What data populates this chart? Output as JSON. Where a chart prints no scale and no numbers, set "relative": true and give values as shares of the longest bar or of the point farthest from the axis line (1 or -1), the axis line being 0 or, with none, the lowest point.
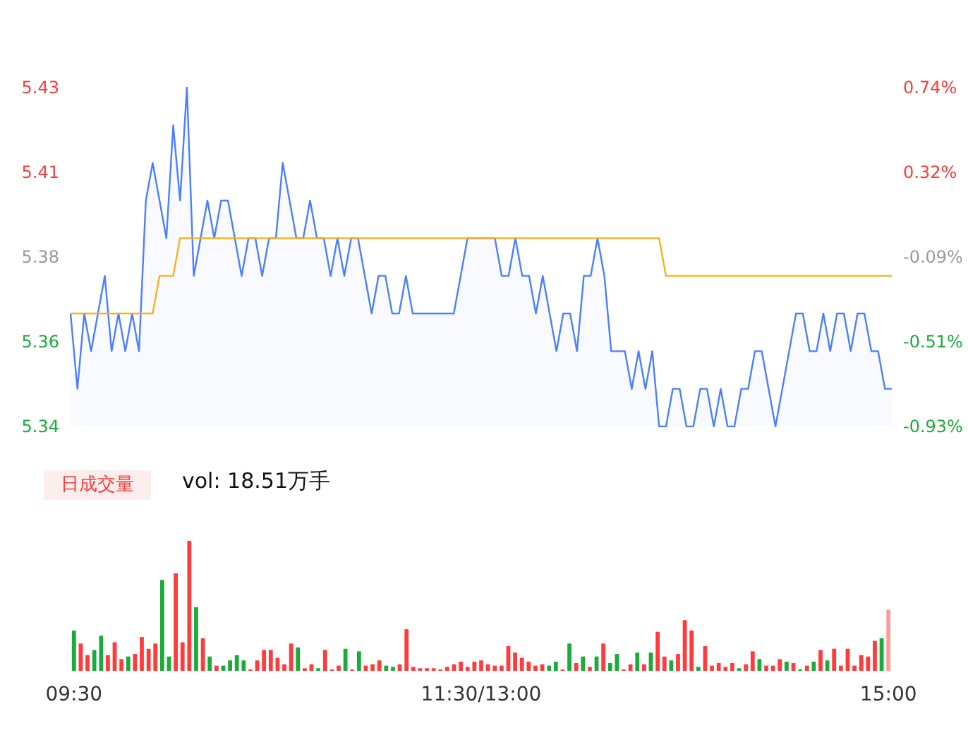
{
  "chart_data": [
    {
      "type": "line",
      "categories": [
        null,
        null,
        null,
        null,
        null,
        null,
        null,
        null,
        null,
        null,
        null,
        null,
        null,
        null,
        null,
        null,
        null,
        null,
        null,
        null,
        null,
        null,
        null,
        null,
        null,
        null,
        null,
        null,
        null,
        null,
        null,
        null,
        null,
        null,
        null,
        null,
        null,
        null,
        null,
        null,
        null,
        null,
        null,
        null,
        null,
        null,
        null,
        null,
        null,
        null,
        null,
        null,
        null,
        null,
        null,
        null,
        null,
        null,
        null,
        null,
        null,
        null,
        null,
        null,
        null,
        null,
        null,
        null,
        null,
        null,
        null,
        null,
        null,
        null,
        null,
        null,
        null,
        null,
        null,
        null,
        null,
        null,
        null,
        null,
        null,
        null,
        null,
        null,
        null,
        null,
        null,
        null,
        null,
        null,
        null,
        null,
        null,
        null,
        null,
        null,
        null,
        null,
        null,
        null,
        null,
        null,
        null,
        null,
        null,
        null,
        null,
        null,
        null,
        null,
        null,
        null,
        null,
        null,
        null,
        null,
        null
      ],
      "series": [
        {
          "type": "area",
          "color": "#4a7fff",
          "values": [
            5.37,
            5.35,
            5.37,
            5.36,
            5.37,
            5.38,
            5.36,
            5.37,
            5.36,
            5.37,
            5.36,
            5.4,
            5.41,
            5.4,
            5.39,
            5.42,
            5.4,
            5.43,
            5.38,
            5.39,
            5.4,
            5.39,
            5.4,
            5.4,
            5.39,
            5.38,
            5.39,
            5.39,
            5.38,
            5.39,
            5.39,
            5.41,
            5.4,
            5.39,
            5.39,
            5.4,
            5.39,
            5.39,
            5.38,
            5.39,
            5.38,
            5.39,
            5.39,
            5.38,
            5.37,
            5.38,
            5.38,
            5.37,
            5.37,
            5.38,
            5.37,
            5.37,
            5.37,
            5.37,
            5.37,
            5.37,
            5.37,
            5.38,
            5.39,
            5.39,
            5.39,
            5.39,
            5.39,
            5.38,
            5.38,
            5.39,
            5.38,
            5.38,
            5.37,
            5.38,
            5.37,
            5.36,
            5.37,
            5.37,
            5.36,
            5.38,
            5.38,
            5.39,
            5.38,
            5.36,
            5.36,
            5.36,
            5.35,
            5.36,
            5.35,
            5.36,
            5.34,
            5.34,
            5.35,
            5.35,
            5.34,
            5.34,
            5.35,
            5.35,
            5.34,
            5.35,
            5.34,
            5.34,
            5.35,
            5.35,
            5.36,
            5.36,
            5.35,
            5.34,
            5.35,
            5.36,
            5.37,
            5.37,
            5.36,
            5.36,
            5.37,
            5.36,
            5.37,
            5.37,
            5.36,
            5.37,
            5.37,
            5.36,
            5.36,
            5.35,
            5.35
          ]
        },
        {
          "type": "line",
          "color": "#f5b21a",
          "values": [
            5.37,
            5.37,
            5.37,
            5.37,
            5.37,
            5.37,
            5.37,
            5.37,
            5.37,
            5.37,
            5.37,
            5.37,
            5.37,
            5.38,
            5.38,
            5.38,
            5.39,
            5.39,
            5.39,
            5.39,
            5.39,
            5.39,
            5.39,
            5.39,
            5.39,
            5.39,
            5.39,
            5.39,
            5.39,
            5.39,
            5.39,
            5.39,
            5.39,
            5.39,
            5.39,
            5.39,
            5.39,
            5.39,
            5.39,
            5.39,
            5.39,
            5.39,
            5.39,
            5.39,
            5.39,
            5.39,
            5.39,
            5.39,
            5.39,
            5.39,
            5.39,
            5.39,
            5.39,
            5.39,
            5.39,
            5.39,
            5.39,
            5.39,
            5.39,
            5.39,
            5.39,
            5.39,
            5.39,
            5.39,
            5.39,
            5.39,
            5.39,
            5.39,
            5.39,
            5.39,
            5.39,
            5.39,
            5.39,
            5.39,
            5.39,
            5.39,
            5.39,
            5.39,
            5.39,
            5.39,
            5.39,
            5.39,
            5.39,
            5.39,
            5.39,
            5.39,
            5.39,
            5.38,
            5.38,
            5.38,
            5.38,
            5.38,
            5.38,
            5.38,
            5.38,
            5.38,
            5.38,
            5.38,
            5.38,
            5.38,
            5.38,
            5.38,
            5.38,
            5.38,
            5.38,
            5.38,
            5.38,
            5.38,
            5.38,
            5.38,
            5.38,
            5.38,
            5.38,
            5.38,
            5.38,
            5.38,
            5.38,
            5.38,
            5.38,
            5.38,
            5.38
          ]
        }
      ],
      "ylim": [
        5.34,
        5.43
      ],
      "yticks": [
        {
          "value": 5.34,
          "label": "5.34"
        },
        {
          "value": 5.3625,
          "label": "5.36"
        },
        {
          "value": 5.385,
          "label": "5.38"
        },
        {
          "value": 5.4075,
          "label": "5.41"
        },
        {
          "value": 5.43,
          "label": "5.43"
        }
      ],
      "y2lim": [
        -0.93,
        0.74
      ],
      "y2ticks": [
        {
          "value": -0.93,
          "label": "-0.93%"
        },
        {
          "value": -0.5125,
          "label": "-0.51%"
        },
        {
          "value": -0.095,
          "label": "-0.09%"
        },
        {
          "value": 0.3225,
          "label": "0.32%"
        },
        {
          "value": 0.74,
          "label": "0.74%"
        }
      ]
    },
    {
      "type": "bar",
      "relative": true,
      "annotations": [
        "日成交量",
        "vol: 18.51万手"
      ],
      "categories": [
        "09:30",
        null,
        null,
        null,
        null,
        null,
        null,
        null,
        null,
        null,
        null,
        null,
        null,
        null,
        null,
        null,
        null,
        null,
        null,
        null,
        null,
        null,
        null,
        null,
        null,
        null,
        null,
        null,
        null,
        null,
        null,
        null,
        null,
        null,
        null,
        null,
        null,
        null,
        null,
        null,
        null,
        null,
        null,
        null,
        null,
        null,
        null,
        null,
        null,
        null,
        null,
        null,
        null,
        null,
        null,
        null,
        null,
        null,
        null,
        null,
        "11:30/13:00",
        null,
        null,
        null,
        null,
        null,
        null,
        null,
        null,
        null,
        null,
        null,
        null,
        null,
        null,
        null,
        null,
        null,
        null,
        null,
        null,
        null,
        null,
        null,
        null,
        null,
        null,
        null,
        null,
        null,
        null,
        null,
        null,
        null,
        null,
        null,
        null,
        null,
        null,
        null,
        null,
        null,
        null,
        null,
        null,
        null,
        null,
        null,
        null,
        null,
        null,
        null,
        null,
        null,
        null,
        null,
        null,
        null,
        null,
        null,
        "15:00"
      ],
      "values": [
        0.31,
        0.21,
        0.12,
        0.16,
        0.27,
        0.12,
        0.22,
        0.09,
        0.11,
        0.13,
        0.26,
        0.17,
        0.21,
        0.7,
        0.11,
        0.75,
        0.22,
        1,
        0.49,
        0.25,
        0.11,
        0.04,
        0.04,
        0.08,
        0.12,
        0.08,
        0.01,
        0.08,
        0.16,
        0.16,
        0.1,
        0.05,
        0.21,
        0.18,
        0.02,
        0.05,
        0.02,
        0.16,
        0.01,
        0.04,
        0.17,
        0.01,
        0.15,
        0.04,
        0.05,
        0.08,
        0.04,
        0.03,
        0.05,
        0.32,
        0.03,
        0.02,
        0.02,
        0.02,
        0.01,
        0.03,
        0.05,
        0.07,
        0.03,
        0.07,
        0.08,
        0.05,
        0.04,
        0.04,
        0.19,
        0.14,
        0.1,
        0.07,
        0.04,
        0.05,
        0.04,
        0.07,
        0.01,
        0.21,
        0.06,
        0.11,
        0.03,
        0.11,
        0.21,
        0.06,
        0.13,
        0.01,
        0.05,
        0.14,
        0.05,
        0.14,
        0.3,
        0.11,
        0.08,
        0.13,
        0.39,
        0.31,
        0.03,
        0.19,
        0.04,
        0.06,
        0.03,
        0.06,
        0.02,
        0.05,
        0.15,
        0.09,
        0.04,
        0.04,
        0.09,
        0.07,
        0.06,
        0.01,
        0.04,
        0.07,
        0.16,
        0.08,
        0.17,
        0.04,
        0.17,
        0.04,
        0.12,
        0.11,
        0.23,
        0.25,
        0.47
      ],
      "colors": [
        "#1aab3a",
        "#ff3b3b",
        "#ff3b3b",
        "#1aab3a",
        "#1aab3a",
        "#ff3b3b",
        "#ff3b3b",
        "#ff3b3b",
        "#1aab3a",
        "#ff3b3b",
        "#ff3b3b",
        "#ff3b3b",
        "#ff3b3b",
        "#1aab3a",
        "#1aab3a",
        "#ff3b3b",
        "#ff3b3b",
        "#ff3b3b",
        "#1aab3a",
        "#ff3b3b",
        "#1aab3a",
        "#ff3b3b",
        "#1aab3a",
        "#1aab3a",
        "#1aab3a",
        "#1aab3a",
        "#ff3b3b",
        "#ff3b3b",
        "#ff3b3b",
        "#ff3b3b",
        "#ff3b3b",
        "#ff3b3b",
        "#ff3b3b",
        "#1aab3a",
        "#ff3b3b",
        "#ff3b3b",
        "#1aab3a",
        "#ff3b3b",
        "#ff3b3b",
        "#ff3b3b",
        "#1aab3a",
        "#ff3b3b",
        "#1aab3a",
        "#ff3b3b",
        "#ff3b3b",
        "#ff3b3b",
        "#1aab3a",
        "#1aab3a",
        "#ff3b3b",
        "#ff3b3b",
        "#ff3b3b",
        "#ff3b3b",
        "#ff3b3b",
        "#ff3b3b",
        "#ff3b3b",
        "#ff3b3b",
        "#ff3b3b",
        "#ff3b3b",
        "#ff3b3b",
        "#ff3b3b",
        "#ff3b3b",
        "#ff3b3b",
        "#ff3b3b",
        "#ff3b3b",
        "#ff3b3b",
        "#ff3b3b",
        "#ff3b3b",
        "#ff3b3b",
        "#ff3b3b",
        "#ff3b3b",
        "#1aab3a",
        "#1aab3a",
        "#ff3b3b",
        "#1aab3a",
        "#ff3b3b",
        "#1aab3a",
        "#ff3b3b",
        "#1aab3a",
        "#ff3b3b",
        "#1aab3a",
        "#1aab3a",
        "#ff3b3b",
        "#ff3b3b",
        "#1aab3a",
        "#ff3b3b",
        "#1aab3a",
        "#ff3b3b",
        "#ff3b3b",
        "#1aab3a",
        "#ff3b3b",
        "#ff3b3b",
        "#ff3b3b",
        "#1aab3a",
        "#ff3b3b",
        "#ff3b3b",
        "#ff3b3b",
        "#ff3b3b",
        "#ff3b3b",
        "#1aab3a",
        "#ff3b3b",
        "#ff3b3b",
        "#1aab3a",
        "#ff3b3b",
        "#ff3b3b",
        "#ff3b3b",
        "#1aab3a",
        "#ff3b3b",
        "#1aab3a",
        "#ff3b3b",
        "#1aab3a",
        "#ff3b3b",
        "#1aab3a",
        "#ff3b3b",
        "#ff3b3b",
        "#ff3b3b",
        "#ff3b3b",
        "#ff3b3b",
        "#ff3b3b",
        "#ff3b3b",
        "#1aab3a",
        "#ff9a9a"
      ]
    }
  ]
}
